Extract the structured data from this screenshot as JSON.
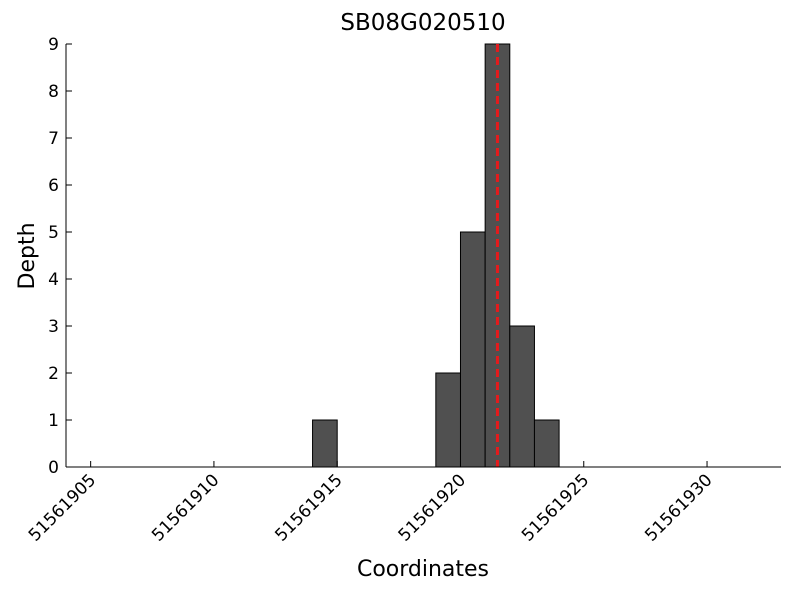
{
  "chart_data": {
    "type": "histogram",
    "title": "SB08G020510",
    "x_label": "Coordinates",
    "y_label": "Depth",
    "bins": [
      51561914,
      51561915,
      51561916,
      51561917,
      51561918,
      51561919,
      51561920,
      51561921,
      51561922,
      51561923,
      51561924
    ],
    "values": [
      1,
      0,
      0,
      0,
      0,
      2,
      5,
      9,
      3,
      1
    ],
    "color": "#505050",
    "xlim": [
      51561904,
      51561933
    ],
    "xticks": [
      51561905,
      51561910,
      51561915,
      51561920,
      51561925,
      51561930
    ],
    "ylim": [
      0,
      9
    ],
    "yticks": [
      0,
      1,
      2,
      3,
      4,
      5,
      6,
      7,
      8,
      9
    ],
    "vline": {
      "x": 51561921.5,
      "color": "#e41a1c"
    }
  }
}
